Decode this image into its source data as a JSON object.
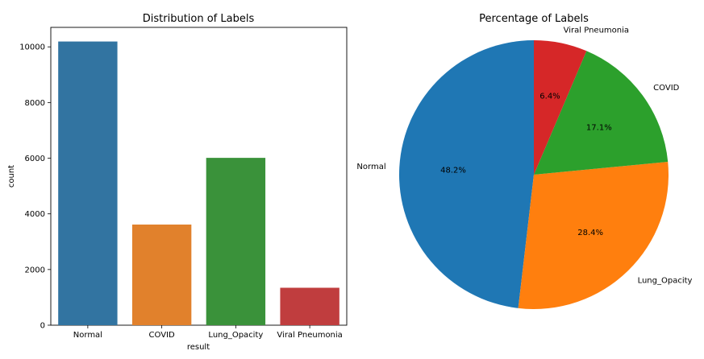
{
  "chart_data": [
    {
      "type": "bar",
      "title": "Distribution of Labels",
      "xlabel": "result",
      "ylabel": "count",
      "categories": [
        "Normal",
        "COVID",
        "Lung_Opacity",
        "Viral Pneumonia"
      ],
      "values": [
        10192,
        3616,
        6012,
        1345
      ],
      "colors": [
        "#3274a1",
        "#e1812c",
        "#3a923a",
        "#c03d3e"
      ],
      "ylim": [
        0,
        10700
      ],
      "yticks": [
        0,
        2000,
        4000,
        6000,
        8000,
        10000
      ],
      "grid": false
    },
    {
      "type": "pie",
      "title": "Percentage of Labels",
      "labels": [
        "Normal",
        "Lung_Opacity",
        "COVID",
        "Viral Pneumonia"
      ],
      "values": [
        48.2,
        28.4,
        17.1,
        6.4
      ],
      "value_labels": [
        "48.2%",
        "28.4%",
        "17.1%",
        "6.4%"
      ],
      "colors": [
        "#1f77b4",
        "#ff7f0e",
        "#2ca02c",
        "#d62728"
      ],
      "start_angle": 90,
      "direction": "counterclockwise"
    }
  ]
}
